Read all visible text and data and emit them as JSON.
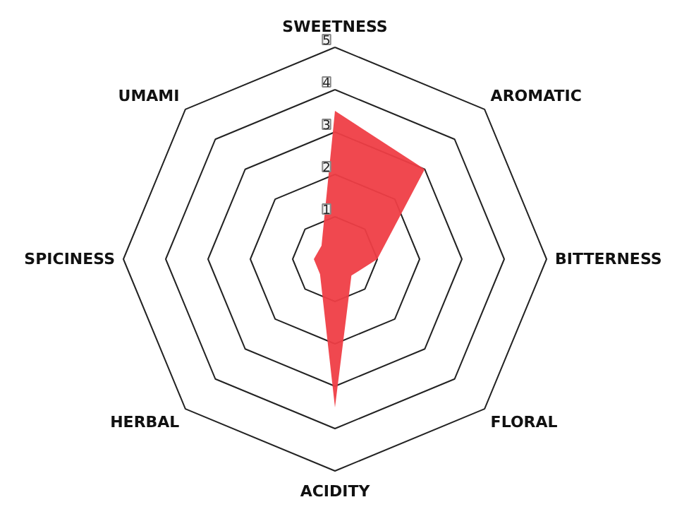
{
  "chart_data": {
    "type": "radar",
    "categories": [
      "SWEETNESS",
      "AROMATIC",
      "BITTERNESS",
      "FLORAL",
      "ACIDITY",
      "HERBAL",
      "SPICINESS",
      "UMAMI"
    ],
    "series": [
      {
        "color": "#ef3e46",
        "values": [
          3.5,
          3.0,
          1.0,
          0.55,
          3.5,
          0.5,
          0.5,
          0.45
        ]
      }
    ],
    "ylim": [
      0,
      5
    ],
    "yticks": [
      1,
      2,
      3,
      4,
      5
    ]
  }
}
